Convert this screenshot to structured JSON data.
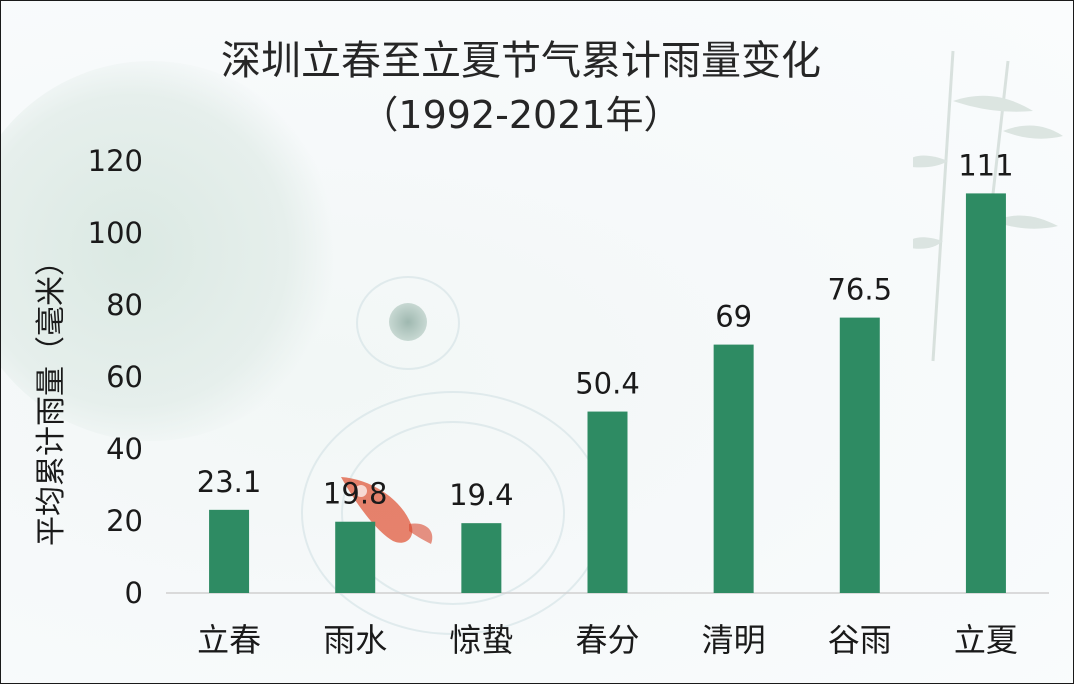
{
  "chart_data": {
    "type": "bar",
    "title": "深圳立春至立夏节气累计雨量变化",
    "subtitle": "（1992-2021年）",
    "xlabel": "",
    "ylabel": "平均累计雨量（毫米）",
    "categories": [
      "立春",
      "雨水",
      "惊蛰",
      "春分",
      "清明",
      "谷雨",
      "立夏"
    ],
    "values": [
      23.1,
      19.8,
      19.4,
      50.4,
      69,
      76.5,
      111
    ],
    "data_labels": [
      "23.1",
      "19.8",
      "19.4",
      "50.4",
      "69",
      "76.5",
      "111"
    ],
    "yticks": [
      0,
      20,
      40,
      60,
      80,
      100,
      120
    ],
    "ylim": [
      0,
      120
    ],
    "grid": false,
    "legend": "none",
    "bar_color": "#2e8b63"
  }
}
